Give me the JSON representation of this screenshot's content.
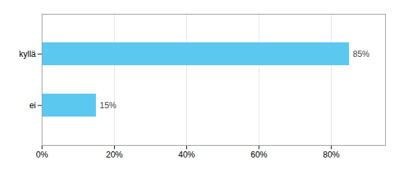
{
  "chart_data": {
    "type": "bar",
    "orientation": "horizontal",
    "categories": [
      "kyllä",
      "ei"
    ],
    "values": [
      85,
      15
    ],
    "value_labels": [
      "85%",
      "15%"
    ],
    "data_labels": true,
    "color": "#5BC8F0",
    "xlim": [
      0,
      95
    ],
    "xticks": [
      {
        "value": 0,
        "label": "0%"
      },
      {
        "value": 20,
        "label": "20%"
      },
      {
        "value": 40,
        "label": "40%"
      },
      {
        "value": 60,
        "label": "60%"
      },
      {
        "value": 80,
        "label": "80%"
      }
    ],
    "grid": true
  }
}
